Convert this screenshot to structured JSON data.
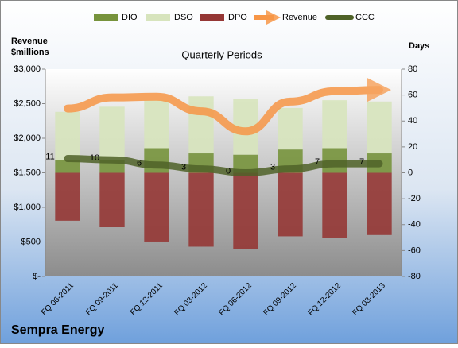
{
  "chart_data": {
    "type": "bar",
    "title": "Quarterly Periods",
    "footer": "Sempra Energy",
    "y_label": [
      "Revenue",
      "$millions"
    ],
    "y2_label": "Days",
    "categories": [
      "FQ 06-2011",
      "FQ 09-2011",
      "FQ 12-2011",
      "FQ 03-2012",
      "FQ 06-2012",
      "FQ 09-2012",
      "FQ 12-2012",
      "FQ 03-2013"
    ],
    "ylim": [
      0,
      3000
    ],
    "yticks": [
      {
        "value": 0,
        "label": "$-"
      },
      {
        "value": 500,
        "label": "$500"
      },
      {
        "value": 1000,
        "label": "$1,000"
      },
      {
        "value": 1500,
        "label": "$1,500"
      },
      {
        "value": 2000,
        "label": "$2,000"
      },
      {
        "value": 2500,
        "label": "$2,500"
      },
      {
        "value": 3000,
        "label": "$3,000"
      }
    ],
    "y2lim": [
      -80,
      80
    ],
    "y2ticks": [
      -80,
      -60,
      -40,
      -20,
      0,
      20,
      40,
      60,
      80
    ],
    "series": [
      {
        "name": "DIO",
        "type": "bar",
        "axis": "y2",
        "color": "#77933c",
        "values": [
          10,
          10,
          19,
          15,
          14,
          18,
          19,
          15
        ]
      },
      {
        "name": "DSO",
        "type": "bar",
        "axis": "y2",
        "color": "#d7e4bd",
        "values": [
          37,
          41,
          37,
          44,
          43,
          32,
          37,
          40
        ]
      },
      {
        "name": "DPO",
        "type": "bar",
        "axis": "y2",
        "color": "#953735",
        "values": [
          -37,
          -42,
          -53,
          -57,
          -59,
          -49,
          -50,
          -48
        ]
      },
      {
        "name": "Revenue",
        "type": "line",
        "color": "#f79646",
        "values": [
          2430,
          2590,
          2600,
          2390,
          2100,
          2530,
          2680,
          2700
        ]
      },
      {
        "name": "CCC",
        "type": "line",
        "axis": "y2",
        "color": "#4f6228",
        "values": [
          11,
          10,
          6,
          3,
          0,
          3,
          7,
          7
        ]
      }
    ]
  }
}
